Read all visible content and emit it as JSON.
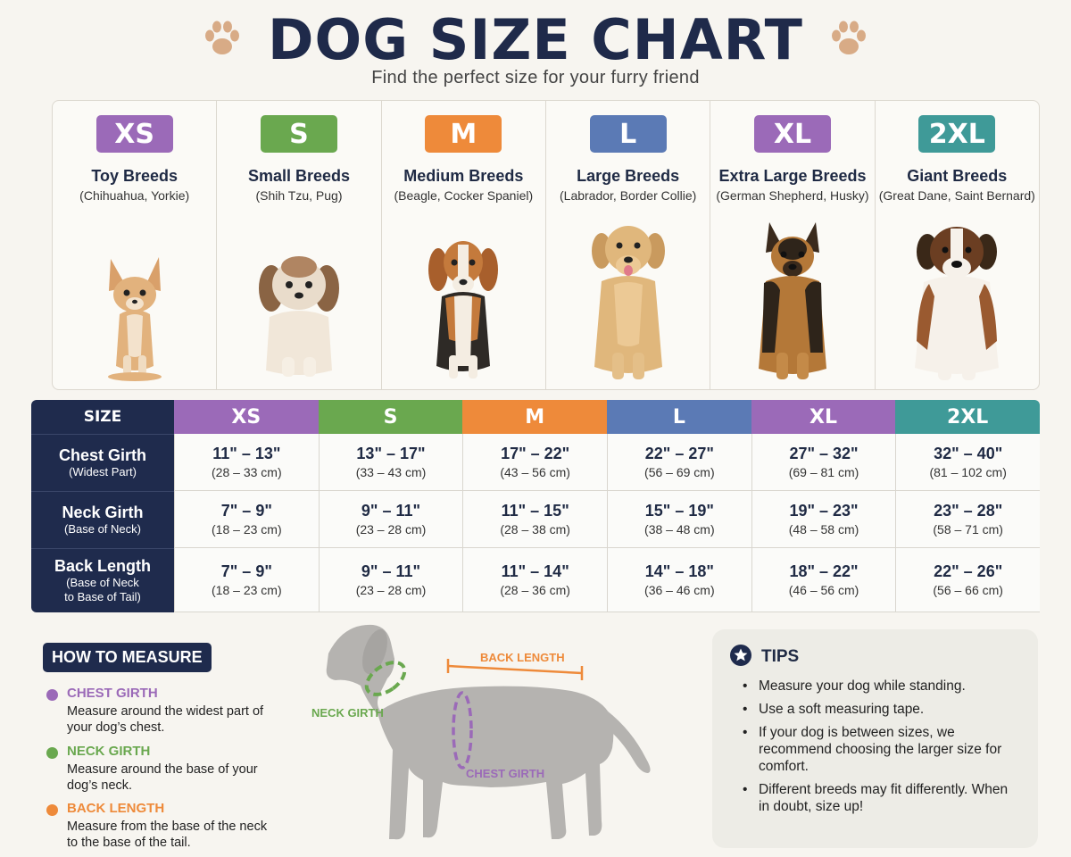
{
  "header": {
    "title": "DOG SIZE CHART",
    "subtitle": "Find the perfect size for your furry friend"
  },
  "colors": {
    "xs": "#9b6ab8",
    "s": "#6aa84f",
    "m": "#ee8a3a",
    "l": "#5b7ab5",
    "xl": "#9b6ab8",
    "xxl": "#3f9a98",
    "navy": "#1f2b4d",
    "paw": "#d8ab86"
  },
  "breeds": [
    {
      "size": "XS",
      "name": "Toy Breeds",
      "examples": "(Chihuahua, Yorkie)",
      "color": "#9b6ab8",
      "icon": "chihuahua-dog"
    },
    {
      "size": "S",
      "name": "Small Breeds",
      "examples": "(Shih Tzu, Pug)",
      "color": "#6aa84f",
      "icon": "shih-tzu-dog"
    },
    {
      "size": "M",
      "name": "Medium Breeds",
      "examples": "(Beagle, Cocker Spaniel)",
      "color": "#ee8a3a",
      "icon": "beagle-dog"
    },
    {
      "size": "L",
      "name": "Large Breeds",
      "examples": "(Labrador, Border Collie)",
      "color": "#5b7ab5",
      "icon": "labrador-dog"
    },
    {
      "size": "XL",
      "name": "Extra Large Breeds",
      "examples": "(German Shepherd, Husky)",
      "color": "#9b6ab8",
      "icon": "german-shepherd-dog"
    },
    {
      "size": "2XL",
      "name": "Giant Breeds",
      "examples": "(Great Dane, Saint Bernard)",
      "color": "#3f9a98",
      "icon": "saint-bernard-dog"
    }
  ],
  "table": {
    "header_label": "SIZE",
    "sizes": [
      "XS",
      "S",
      "M",
      "L",
      "XL",
      "2XL"
    ],
    "rows": [
      {
        "label": "Chest Girth",
        "sublabel": "(Widest Part)",
        "sublabel2": "",
        "cells": [
          {
            "in": "11\" – 13\"",
            "cm": "(28 – 33 cm)"
          },
          {
            "in": "13\" – 17\"",
            "cm": "(33 – 43 cm)"
          },
          {
            "in": "17\" – 22\"",
            "cm": "(43 – 56 cm)"
          },
          {
            "in": "22\" – 27\"",
            "cm": "(56 – 69 cm)"
          },
          {
            "in": "27\" – 32\"",
            "cm": "(69 – 81 cm)"
          },
          {
            "in": "32\" – 40\"",
            "cm": "(81 – 102 cm)"
          }
        ]
      },
      {
        "label": "Neck Girth",
        "sublabel": "(Base of Neck)",
        "sublabel2": "",
        "cells": [
          {
            "in": "7\" – 9\"",
            "cm": "(18 – 23 cm)"
          },
          {
            "in": "9\" – 11\"",
            "cm": "(23 – 28 cm)"
          },
          {
            "in": "11\" – 15\"",
            "cm": "(28 – 38 cm)"
          },
          {
            "in": "15\" – 19\"",
            "cm": "(38 – 48 cm)"
          },
          {
            "in": "19\" – 23\"",
            "cm": "(48 – 58 cm)"
          },
          {
            "in": "23\" – 28\"",
            "cm": "(58 – 71 cm)"
          }
        ]
      },
      {
        "label": "Back Length",
        "sublabel": "(Base of Neck",
        "sublabel2": "to Base of Tail)",
        "cells": [
          {
            "in": "7\" – 9\"",
            "cm": "(18 – 23 cm)"
          },
          {
            "in": "9\" – 11\"",
            "cm": "(23 – 28 cm)"
          },
          {
            "in": "11\" – 14\"",
            "cm": "(28 – 36 cm)"
          },
          {
            "in": "14\" – 18\"",
            "cm": "(36 – 46 cm)"
          },
          {
            "in": "18\" – 22\"",
            "cm": "(46 – 56 cm)"
          },
          {
            "in": "22\" – 26\"",
            "cm": "(56 – 66 cm)"
          }
        ]
      }
    ]
  },
  "howto": {
    "title": "HOW TO MEASURE",
    "items": [
      {
        "title": "CHEST GIRTH",
        "desc": "Measure around the widest part of your dog’s chest.",
        "color": "#9b6ab8"
      },
      {
        "title": "NECK GIRTH",
        "desc": "Measure around the base of your dog’s neck.",
        "color": "#6aa84f"
      },
      {
        "title": "BACK LENGTH",
        "desc": "Measure from the base of the neck to the base of the tail.",
        "color": "#ee8a3a"
      }
    ]
  },
  "diagram": {
    "back_length": "BACK LENGTH",
    "neck_girth": "NECK GIRTH",
    "chest_girth": "CHEST GIRTH",
    "icon": "dog-silhouette"
  },
  "tips": {
    "title": "TIPS",
    "icon": "star-icon",
    "items": [
      "Measure your dog while standing.",
      "Use a soft measuring tape.",
      "If your dog is between sizes, we recommend choosing the larger size for comfort.",
      "Different breeds may fit differently. When in doubt, size up!"
    ]
  }
}
